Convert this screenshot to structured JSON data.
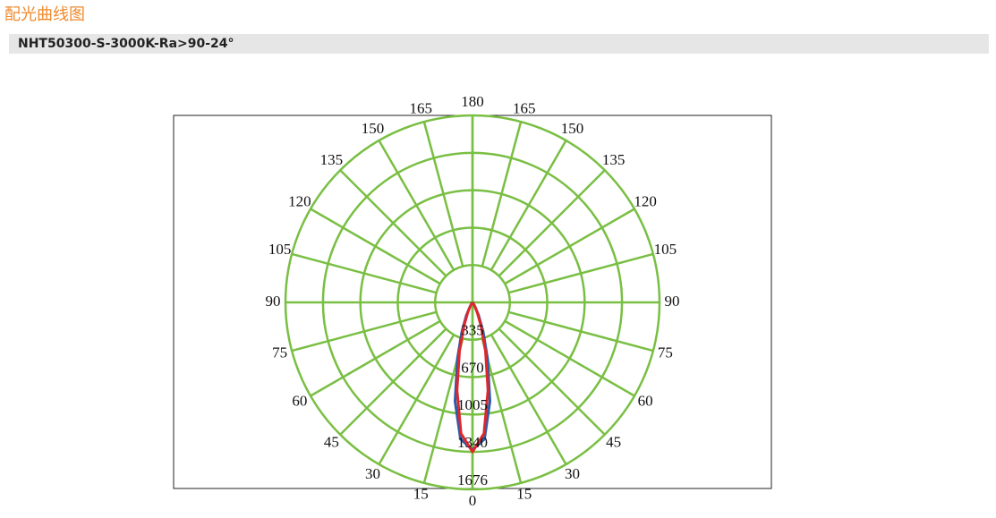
{
  "header": {
    "title": "配光曲线图",
    "subtitle": "NHT50300-S-3000K-Ra>90-24°"
  },
  "chart_data": {
    "type": "polar",
    "angles": [
      -60,
      -45,
      -30,
      -25,
      -20,
      -15,
      -10,
      -5,
      0,
      5,
      10,
      15,
      20,
      25,
      30,
      45,
      60
    ],
    "series": [
      {
        "color": "#2a5caa",
        "values": [
          0,
          8,
          50,
          130,
          280,
          520,
          900,
          1230,
          1320,
          1230,
          900,
          520,
          280,
          130,
          50,
          8,
          0
        ]
      },
      {
        "color": "#e0262b",
        "values": [
          0,
          5,
          40,
          100,
          220,
          450,
          800,
          1180,
          1340,
          1180,
          800,
          450,
          220,
          100,
          40,
          5,
          0
        ]
      }
    ],
    "rlim": [
      0,
      1676
    ],
    "rticks": [
      335,
      670,
      1005,
      1340,
      1676
    ],
    "angle_ticks": [
      0,
      15,
      30,
      45,
      60,
      75,
      90,
      105,
      120,
      135,
      150,
      165,
      180
    ],
    "grid": true,
    "grid_color": "#79bf43"
  }
}
